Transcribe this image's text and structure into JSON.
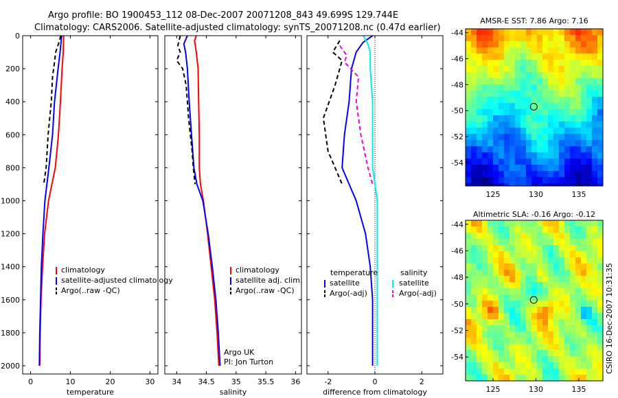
{
  "header": {
    "line1": "Argo profile: BO 1900453_112 08-Dec-2007 20071208_843 49.699S 129.744E",
    "line2": "Climatology: CARS2006. Satellite-adjusted climatology: synTS_20071208.nc (0.47d earlier)"
  },
  "side_label": "CSIRO 16-Dec-2007 10:31:35",
  "credit": {
    "line1": "Argo UK",
    "line2": "PI: Jon Turton"
  },
  "colors": {
    "climatology": "#ff0000",
    "satellite": "#0000ff",
    "argo": "#000000",
    "satellite_diff_sal": "#00eeee",
    "argo_diff_sal": "#ee00ee"
  },
  "chart_data": [
    {
      "type": "line",
      "id": "temperature",
      "xlabel": "temperature",
      "xlim": [
        -2,
        32
      ],
      "ylim": [
        0,
        2050
      ],
      "y_reversed": true,
      "xticks": [
        0,
        10,
        20,
        30
      ],
      "yticks": [
        0,
        200,
        400,
        600,
        800,
        1000,
        1200,
        1400,
        1600,
        1800,
        2000
      ],
      "legend": [
        "climatology",
        "satellite-adjusted climatology",
        "Argo(..raw -QC)"
      ],
      "series": [
        {
          "name": "climatology",
          "color": "#ff0000",
          "dash": "",
          "points": [
            [
              8.3,
              0
            ],
            [
              8.2,
              100
            ],
            [
              7.9,
              200
            ],
            [
              7.5,
              400
            ],
            [
              7.0,
              600
            ],
            [
              6.2,
              800
            ],
            [
              4.5,
              1000
            ],
            [
              3.5,
              1200
            ],
            [
              3.0,
              1400
            ],
            [
              2.6,
              1600
            ],
            [
              2.4,
              1800
            ],
            [
              2.3,
              2000
            ]
          ]
        },
        {
          "name": "satellite-adjusted climatology",
          "color": "#0000ff",
          "dash": "",
          "points": [
            [
              7.8,
              0
            ],
            [
              7.4,
              100
            ],
            [
              6.9,
              200
            ],
            [
              6.0,
              400
            ],
            [
              5.5,
              600
            ],
            [
              4.6,
              800
            ],
            [
              3.6,
              1000
            ],
            [
              3.1,
              1200
            ],
            [
              2.7,
              1400
            ],
            [
              2.5,
              1600
            ],
            [
              2.3,
              1800
            ],
            [
              2.2,
              2000
            ]
          ]
        },
        {
          "name": "Argo(..raw -QC)",
          "color": "#000000",
          "dash": "6,4",
          "points": [
            [
              7.6,
              0
            ],
            [
              7.0,
              50
            ],
            [
              6.3,
              100
            ],
            [
              6.0,
              160
            ],
            [
              5.5,
              250
            ],
            [
              5.2,
              400
            ],
            [
              4.8,
              500
            ],
            [
              4.4,
              600
            ],
            [
              3.9,
              800
            ],
            [
              3.3,
              900
            ]
          ]
        }
      ]
    },
    {
      "type": "line",
      "id": "salinity",
      "xlabel": "salinity",
      "xlim": [
        33.8,
        36.1
      ],
      "ylim": [
        0,
        2050
      ],
      "y_reversed": true,
      "xticks": [
        34,
        34.5,
        35,
        35.5,
        36
      ],
      "yticks": [
        0,
        200,
        400,
        600,
        800,
        1000,
        1200,
        1400,
        1600,
        1800,
        2000
      ],
      "legend": [
        "climatology",
        "satellite adj. clim.",
        "Argo(..raw -QC)"
      ],
      "series": [
        {
          "name": "climatology",
          "color": "#ff0000",
          "dash": "",
          "points": [
            [
              34.33,
              0
            ],
            [
              34.3,
              30
            ],
            [
              34.33,
              100
            ],
            [
              34.36,
              200
            ],
            [
              34.37,
              400
            ],
            [
              34.38,
              600
            ],
            [
              34.38,
              800
            ],
            [
              34.4,
              900
            ],
            [
              34.45,
              1000
            ],
            [
              34.52,
              1200
            ],
            [
              34.58,
              1400
            ],
            [
              34.64,
              1600
            ],
            [
              34.68,
              1800
            ],
            [
              34.71,
              2000
            ]
          ]
        },
        {
          "name": "satellite adj. clim.",
          "color": "#0000ff",
          "dash": "",
          "points": [
            [
              34.18,
              0
            ],
            [
              34.12,
              50
            ],
            [
              34.15,
              100
            ],
            [
              34.18,
              200
            ],
            [
              34.21,
              400
            ],
            [
              34.25,
              600
            ],
            [
              34.29,
              800
            ],
            [
              34.34,
              900
            ],
            [
              34.44,
              1000
            ],
            [
              34.53,
              1200
            ],
            [
              34.6,
              1400
            ],
            [
              34.66,
              1600
            ],
            [
              34.7,
              1800
            ],
            [
              34.73,
              2000
            ]
          ]
        },
        {
          "name": "Argo(..raw -QC)",
          "color": "#000000",
          "dash": "6,4",
          "points": [
            [
              34.06,
              0
            ],
            [
              34.02,
              60
            ],
            [
              34.06,
              100
            ],
            [
              34.0,
              150
            ],
            [
              34.1,
              200
            ],
            [
              34.16,
              300
            ],
            [
              34.18,
              400
            ],
            [
              34.2,
              500
            ],
            [
              34.23,
              600
            ],
            [
              34.26,
              700
            ],
            [
              34.28,
              800
            ],
            [
              34.31,
              900
            ]
          ]
        }
      ]
    },
    {
      "type": "line",
      "id": "difference",
      "xlabel": "difference from climatology",
      "xlim": [
        -2.9,
        2.9
      ],
      "ylim": [
        0,
        2050
      ],
      "y_reversed": true,
      "xticks": [
        -2,
        0,
        2
      ],
      "yticks": [
        0,
        200,
        400,
        600,
        800,
        1000,
        1200,
        1400,
        1600,
        1800,
        2000
      ],
      "legend_left_title": "temperature",
      "legend_right_title": "salinity",
      "legend_left": [
        "satellite",
        "Argo(-adj)"
      ],
      "legend_right": [
        "satellite",
        "Argo(-adj)"
      ],
      "series": [
        {
          "name": "temperature satellite",
          "color": "#0000ff",
          "dash": "",
          "points": [
            [
              -0.1,
              0
            ],
            [
              -0.5,
              40
            ],
            [
              -0.8,
              100
            ],
            [
              -1.0,
              200
            ],
            [
              -1.1,
              400
            ],
            [
              -1.3,
              600
            ],
            [
              -1.4,
              800
            ],
            [
              -0.8,
              1000
            ],
            [
              -0.4,
              1200
            ],
            [
              -0.2,
              1400
            ],
            [
              -0.1,
              1600
            ],
            [
              -0.1,
              1800
            ],
            [
              -0.1,
              2000
            ]
          ]
        },
        {
          "name": "temperature Argo(-adj)",
          "color": "#000000",
          "dash": "6,4",
          "points": [
            [
              -1.5,
              30
            ],
            [
              -1.8,
              100
            ],
            [
              -1.4,
              150
            ],
            [
              -1.7,
              300
            ],
            [
              -2.2,
              500
            ],
            [
              -2.0,
              700
            ],
            [
              -1.7,
              800
            ],
            [
              -1.4,
              900
            ]
          ]
        },
        {
          "name": "salinity satellite",
          "color": "#00eeee",
          "dash": "",
          "points": [
            [
              -0.5,
              0
            ],
            [
              -0.3,
              50
            ],
            [
              -0.2,
              100
            ],
            [
              -0.2,
              200
            ],
            [
              -0.1,
              400
            ],
            [
              -0.1,
              800
            ],
            [
              0.1,
              1000
            ],
            [
              0.1,
              1200
            ],
            [
              0.1,
              1400
            ],
            [
              0.1,
              1600
            ],
            [
              0.1,
              1800
            ],
            [
              0.1,
              2000
            ]
          ]
        },
        {
          "name": "salinity Argo(-adj)",
          "color": "#ee00ee",
          "dash": "6,4",
          "points": [
            [
              -1.5,
              60
            ],
            [
              -1.2,
              120
            ],
            [
              -1.3,
              160
            ],
            [
              -0.7,
              250
            ],
            [
              -0.8,
              400
            ],
            [
              -0.6,
              600
            ],
            [
              -0.3,
              800
            ],
            [
              -0.1,
              900
            ]
          ]
        }
      ]
    },
    {
      "type": "heatmap",
      "id": "sst",
      "title": "AMSR-E SST: 7.86  Argo: 7.16",
      "xlim": [
        121.8,
        137.8
      ],
      "ylim": [
        -55.8,
        -43.7
      ],
      "xticks": [
        125,
        130,
        135
      ],
      "yticks": [
        -44,
        -46,
        -48,
        -50,
        -52,
        -54
      ],
      "argo_position": [
        129.744,
        -49.699
      ]
    },
    {
      "type": "heatmap",
      "id": "sla",
      "title": "Altimetric SLA: -0.16  Argo: -0.12",
      "xlim": [
        121.8,
        137.8
      ],
      "ylim": [
        -55.8,
        -43.7
      ],
      "xticks": [
        125,
        130,
        135
      ],
      "yticks": [
        -44,
        -46,
        -48,
        -50,
        -52,
        -54
      ],
      "argo_position": [
        129.744,
        -49.699
      ]
    }
  ]
}
